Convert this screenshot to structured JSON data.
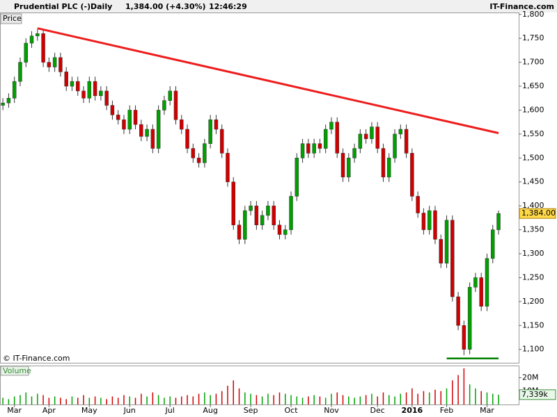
{
  "header": {
    "title": "Prudential PLC (-)",
    "period": "Daily",
    "quote": "1,384.00 (+4.30%)",
    "time": "12:46:29",
    "brand": "IT-Finance.com"
  },
  "chart_data": {
    "type": "candlestick",
    "price_label": "Price",
    "volume_label": "Volume",
    "copyright": "© IT-Finance.com",
    "categories": [
      null,
      null,
      "Mar",
      null,
      null,
      null,
      null,
      null,
      "Apr",
      null,
      null,
      null,
      null,
      null,
      null,
      "May",
      null,
      null,
      null,
      null,
      null,
      null,
      "Jun",
      null,
      null,
      null,
      null,
      null,
      null,
      "Jul",
      null,
      null,
      null,
      null,
      null,
      null,
      "Aug",
      null,
      null,
      null,
      null,
      null,
      null,
      "Sep",
      null,
      null,
      null,
      null,
      null,
      null,
      "Oct",
      null,
      null,
      null,
      null,
      null,
      null,
      "Nov",
      null,
      null,
      null,
      null,
      null,
      null,
      null,
      "Dec",
      null,
      null,
      null,
      null,
      null,
      "2016",
      null,
      null,
      null,
      null,
      null,
      "Feb",
      null,
      null,
      null,
      null,
      null,
      null,
      "Mar",
      null,
      null
    ],
    "open": [
      1610,
      1615,
      1625,
      1660,
      1700,
      1740,
      1755,
      1760,
      1700,
      1690,
      1710,
      1680,
      1650,
      1660,
      1640,
      1625,
      1660,
      1630,
      1640,
      1610,
      1590,
      1580,
      1560,
      1600,
      1570,
      1545,
      1560,
      1520,
      1600,
      1620,
      1640,
      1580,
      1560,
      1520,
      1500,
      1490,
      1530,
      1580,
      1560,
      1510,
      1450,
      1360,
      1330,
      1390,
      1400,
      1360,
      1380,
      1400,
      1360,
      1340,
      1350,
      1420,
      1500,
      1530,
      1510,
      1530,
      1520,
      1560,
      1575,
      1510,
      1460,
      1500,
      1520,
      1550,
      1540,
      1565,
      1520,
      1460,
      1500,
      1550,
      1560,
      1510,
      1420,
      1385,
      1350,
      1390,
      1330,
      1280,
      1370,
      1210,
      1150,
      1100,
      1230,
      1250,
      1190,
      1290,
      1350
    ],
    "high": [
      1625,
      1635,
      1670,
      1710,
      1750,
      1765,
      1770,
      1770,
      1710,
      1720,
      1720,
      1690,
      1670,
      1670,
      1650,
      1670,
      1670,
      1650,
      1650,
      1620,
      1600,
      1590,
      1610,
      1610,
      1580,
      1570,
      1570,
      1610,
      1630,
      1650,
      1650,
      1590,
      1570,
      1530,
      1510,
      1540,
      1590,
      1590,
      1570,
      1520,
      1460,
      1370,
      1400,
      1410,
      1410,
      1390,
      1410,
      1410,
      1370,
      1360,
      1430,
      1510,
      1540,
      1540,
      1540,
      1540,
      1570,
      1585,
      1585,
      1520,
      1510,
      1530,
      1560,
      1560,
      1575,
      1575,
      1530,
      1510,
      1560,
      1570,
      1570,
      1520,
      1430,
      1395,
      1400,
      1400,
      1340,
      1380,
      1380,
      1220,
      1160,
      1240,
      1260,
      1260,
      1300,
      1360,
      1390
    ],
    "low": [
      1600,
      1605,
      1615,
      1650,
      1690,
      1730,
      1745,
      1690,
      1680,
      1680,
      1670,
      1640,
      1640,
      1630,
      1615,
      1615,
      1620,
      1620,
      1600,
      1580,
      1570,
      1550,
      1550,
      1560,
      1535,
      1535,
      1510,
      1510,
      1590,
      1610,
      1570,
      1550,
      1510,
      1490,
      1480,
      1480,
      1520,
      1550,
      1500,
      1440,
      1350,
      1320,
      1320,
      1380,
      1350,
      1350,
      1370,
      1350,
      1330,
      1330,
      1340,
      1410,
      1490,
      1500,
      1500,
      1510,
      1510,
      1550,
      1500,
      1450,
      1450,
      1490,
      1510,
      1530,
      1530,
      1510,
      1450,
      1450,
      1490,
      1540,
      1500,
      1410,
      1375,
      1340,
      1340,
      1320,
      1270,
      1270,
      1200,
      1140,
      1088,
      1090,
      1220,
      1180,
      1180,
      1280,
      1340
    ],
    "close": [
      1615,
      1625,
      1660,
      1700,
      1740,
      1755,
      1760,
      1700,
      1690,
      1710,
      1680,
      1650,
      1660,
      1640,
      1625,
      1660,
      1630,
      1640,
      1610,
      1590,
      1580,
      1560,
      1600,
      1570,
      1545,
      1560,
      1520,
      1600,
      1620,
      1640,
      1580,
      1560,
      1520,
      1500,
      1490,
      1530,
      1580,
      1560,
      1510,
      1450,
      1360,
      1330,
      1390,
      1400,
      1360,
      1380,
      1400,
      1360,
      1340,
      1350,
      1420,
      1500,
      1530,
      1510,
      1530,
      1520,
      1560,
      1575,
      1510,
      1460,
      1500,
      1520,
      1550,
      1540,
      1565,
      1520,
      1460,
      1500,
      1550,
      1560,
      1510,
      1420,
      1385,
      1350,
      1390,
      1330,
      1280,
      1370,
      1210,
      1150,
      1100,
      1230,
      1250,
      1190,
      1290,
      1350,
      1384
    ],
    "last_close_label": "1,384.00",
    "volume": [
      5,
      4,
      6,
      7,
      9,
      6,
      8,
      7,
      5,
      6,
      5,
      4,
      6,
      5,
      7,
      5,
      6,
      5,
      4,
      6,
      5,
      7,
      6,
      5,
      8,
      6,
      9,
      7,
      5,
      6,
      5,
      6,
      7,
      6,
      8,
      9,
      7,
      8,
      10,
      14,
      18,
      12,
      9,
      8,
      7,
      6,
      8,
      7,
      9,
      8,
      7,
      6,
      5,
      6,
      7,
      6,
      5,
      8,
      9,
      7,
      6,
      5,
      6,
      7,
      8,
      6,
      9,
      7,
      6,
      8,
      9,
      12,
      8,
      10,
      9,
      11,
      10,
      12,
      18,
      22,
      27,
      15,
      12,
      10,
      9,
      8,
      7.339
    ],
    "last_volume_label": "7,339k",
    "up_color": "#00a000",
    "down_color": "#d00000",
    "ylim": [
      1072,
      1804
    ],
    "yticks": [
      {
        "value": 1100,
        "label": "1,100"
      },
      {
        "value": 1150,
        "label": "1,150"
      },
      {
        "value": 1200,
        "label": "1,200"
      },
      {
        "value": 1250,
        "label": "1,250"
      },
      {
        "value": 1300,
        "label": "1,300"
      },
      {
        "value": 1350,
        "label": "1,350"
      },
      {
        "value": 1400,
        "label": "1,400"
      },
      {
        "value": 1450,
        "label": "1,450"
      },
      {
        "value": 1500,
        "label": "1,500"
      },
      {
        "value": 1550,
        "label": "1,550"
      },
      {
        "value": 1600,
        "label": "1,600"
      },
      {
        "value": 1650,
        "label": "1,650"
      },
      {
        "value": 1700,
        "label": "1,700"
      },
      {
        "value": 1750,
        "label": "1,750"
      },
      {
        "value": 1800,
        "label": "1,800"
      }
    ],
    "y2lim": [
      0,
      28
    ],
    "y2ticks": [
      {
        "value": 20,
        "label": "20M"
      },
      {
        "value": 10,
        "label": "10M"
      }
    ],
    "annotations": [
      {
        "color": "#ee1c1c",
        "x": [
          6,
          86
        ],
        "y": [
          1771,
          1552
        ]
      },
      {
        "color": "#008000",
        "x": [
          77,
          86
        ],
        "y": [
          1081,
          1081
        ]
      }
    ]
  }
}
